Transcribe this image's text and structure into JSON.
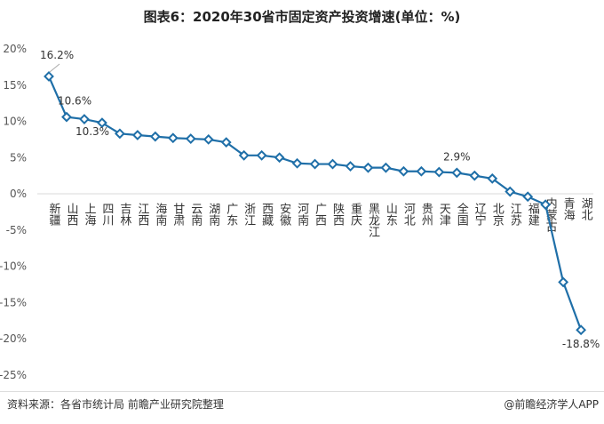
{
  "title": "图表6：2020年30省市固定资产投资增速(单位：%)",
  "source": "资料来源：各省市统计局 前瞻产业研究院整理",
  "brand": "@前瞻经济学人APP",
  "chart_data": {
    "type": "line",
    "title": "图表6：2020年30省市固定资产投资增速(单位：%)",
    "categories": [
      "新疆",
      "山西",
      "上海",
      "四川",
      "吉林",
      "江西",
      "海南",
      "甘肃",
      "云南",
      "湖南",
      "广东",
      "浙江",
      "西藏",
      "安徽",
      "河南",
      "广西",
      "陕西",
      "重庆",
      "黑龙江",
      "山东",
      "河北",
      "贵州",
      "天津",
      "全国",
      "辽宁",
      "北京",
      "江苏",
      "福建",
      "内蒙古",
      "青海",
      "湖北"
    ],
    "values": [
      16.2,
      10.6,
      10.3,
      9.8,
      8.3,
      8.1,
      7.9,
      7.7,
      7.6,
      7.5,
      7.1,
      5.3,
      5.3,
      5.0,
      4.2,
      4.1,
      4.1,
      3.8,
      3.6,
      3.6,
      3.1,
      3.1,
      3.0,
      2.9,
      2.5,
      2.1,
      0.3,
      -0.4,
      -1.5,
      -12.2,
      -18.8
    ],
    "data_labels": [
      {
        "index": 0,
        "text": "16.2%"
      },
      {
        "index": 1,
        "text": "10.6%"
      },
      {
        "index": 2,
        "text": "10.3%"
      },
      {
        "index": 23,
        "text": "2.9%"
      },
      {
        "index": 30,
        "text": "-18.8%"
      }
    ],
    "yticks": [
      "20%",
      "15%",
      "10%",
      "5%",
      "0%",
      "-5%",
      "-10%",
      "-15%",
      "-20%",
      "-25%"
    ],
    "ylim": [
      -25,
      20
    ],
    "grid": false,
    "color": "#1f6fa8"
  }
}
